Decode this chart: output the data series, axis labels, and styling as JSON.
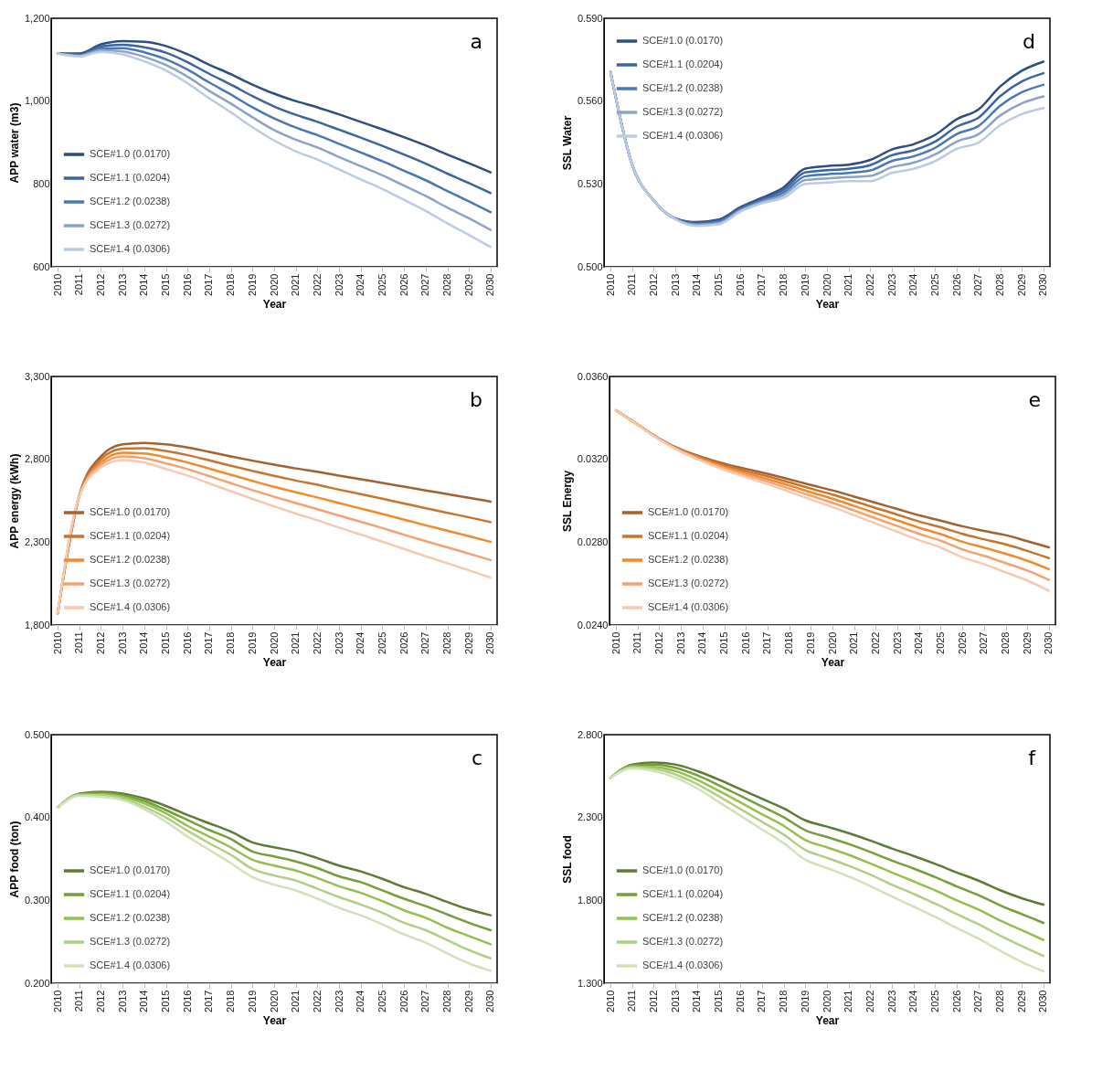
{
  "chart_data": [
    {
      "type": "line",
      "xlabel": "Year",
      "ylabel": "APP water (m3)",
      "annotations": [
        "a"
      ],
      "legend": "bottom left",
      "categories": [
        "2010",
        "2011",
        "2012",
        "2013",
        "2014",
        "2015",
        "2016",
        "2017",
        "2018",
        "2019",
        "2020",
        "2021",
        "2022",
        "2023",
        "2024",
        "2025",
        "2026",
        "2027",
        "2028",
        "2029",
        "2030"
      ],
      "ylim": [
        600,
        1200
      ],
      "yticks": [
        {
          "value": 600,
          "label": "600"
        },
        {
          "value": 800,
          "label": "800"
        },
        {
          "value": 1000,
          "label": "1,000"
        },
        {
          "value": 1200,
          "label": "1,200"
        }
      ],
      "series": [
        {
          "name": "SCE#1.0 (0.0170)",
          "color": "#2f4d7e",
          "values": [
            1115,
            1115,
            1137,
            1145,
            1143,
            1133,
            1113,
            1088,
            1065,
            1040,
            1018,
            1000,
            985,
            968,
            950,
            932,
            913,
            893,
            871,
            850,
            828
          ]
        },
        {
          "name": "SCE#1.1 (0.0204)",
          "color": "#3c64a0",
          "values": [
            1115,
            1113,
            1132,
            1136,
            1130,
            1117,
            1094,
            1066,
            1040,
            1012,
            987,
            967,
            950,
            931,
            912,
            892,
            871,
            849,
            825,
            802,
            778
          ]
        },
        {
          "name": "SCE#1.2 (0.0238)",
          "color": "#4a78b4",
          "values": [
            1115,
            1111,
            1127,
            1128,
            1118,
            1101,
            1076,
            1045,
            1016,
            985,
            958,
            936,
            918,
            897,
            876,
            855,
            832,
            809,
            783,
            758,
            732
          ]
        },
        {
          "name": "SCE#1.3 (0.0272)",
          "color": "#8da2c8",
          "values": [
            1115,
            1109,
            1123,
            1120,
            1107,
            1087,
            1059,
            1025,
            994,
            961,
            930,
            907,
            888,
            865,
            843,
            821,
            796,
            771,
            743,
            717,
            689
          ]
        },
        {
          "name": "SCE#1.4 (0.0306)",
          "color": "#bccbe3",
          "values": [
            1115,
            1108,
            1119,
            1113,
            1096,
            1074,
            1043,
            1007,
            973,
            937,
            905,
            879,
            859,
            835,
            811,
            788,
            762,
            735,
            705,
            677,
            648
          ]
        }
      ]
    },
    {
      "type": "line",
      "xlabel": "Year",
      "ylabel": "SSL Water",
      "annotations": [
        "d"
      ],
      "legend": "top left",
      "categories": [
        "2010",
        "2011",
        "2012",
        "2013",
        "2014",
        "2015",
        "2016",
        "2017",
        "2018",
        "2019",
        "2020",
        "2021",
        "2022",
        "2023",
        "2024",
        "2025",
        "2026",
        "2027",
        "2028",
        "2029",
        "2030"
      ],
      "ylim": [
        0.5,
        0.59
      ],
      "yticks": [
        {
          "value": 0.5,
          "label": "0.500"
        },
        {
          "value": 0.53,
          "label": "0.530"
        },
        {
          "value": 0.56,
          "label": "0.560"
        },
        {
          "value": 0.59,
          "label": "0.590"
        }
      ],
      "series": [
        {
          "name": "SCE#1.0 (0.0170)",
          "color": "#2f4d7e",
          "values": [
            0.5706,
            0.537,
            0.524,
            0.5175,
            0.5162,
            0.5171,
            0.5216,
            0.525,
            0.5288,
            0.5356,
            0.5365,
            0.537,
            0.5387,
            0.5425,
            0.5444,
            0.5478,
            0.5535,
            0.557,
            0.5653,
            0.571,
            0.5743
          ]
        },
        {
          "name": "SCE#1.1 (0.0204)",
          "color": "#3c64a0",
          "values": [
            0.5706,
            0.537,
            0.524,
            0.5174,
            0.5159,
            0.5167,
            0.5212,
            0.5245,
            0.5279,
            0.5342,
            0.535,
            0.5355,
            0.5368,
            0.5404,
            0.5422,
            0.5454,
            0.5508,
            0.554,
            0.5618,
            0.5671,
            0.5701
          ]
        },
        {
          "name": "SCE#1.2 (0.0238)",
          "color": "#4a78b4",
          "values": [
            0.5706,
            0.537,
            0.524,
            0.5174,
            0.5155,
            0.5163,
            0.5208,
            0.524,
            0.5269,
            0.5328,
            0.5335,
            0.534,
            0.5349,
            0.5383,
            0.54,
            0.5431,
            0.5481,
            0.551,
            0.5583,
            0.5632,
            0.5659
          ]
        },
        {
          "name": "SCE#1.3 (0.0272)",
          "color": "#8da2c8",
          "values": [
            0.5706,
            0.537,
            0.524,
            0.5173,
            0.5152,
            0.5158,
            0.5204,
            0.5235,
            0.526,
            0.5314,
            0.532,
            0.5325,
            0.5329,
            0.5361,
            0.5377,
            0.5407,
            0.5454,
            0.548,
            0.5548,
            0.5592,
            0.5617
          ]
        },
        {
          "name": "SCE#1.4 (0.0306)",
          "color": "#bccbe3",
          "values": [
            0.5706,
            0.537,
            0.524,
            0.5172,
            0.5148,
            0.5154,
            0.52,
            0.523,
            0.525,
            0.53,
            0.5305,
            0.531,
            0.531,
            0.534,
            0.5355,
            0.5383,
            0.5427,
            0.545,
            0.5513,
            0.5553,
            0.5575
          ]
        }
      ]
    },
    {
      "type": "line",
      "xlabel": "Year",
      "ylabel": "APP energy (kWh)",
      "annotations": [
        "b"
      ],
      "legend": "bottom left",
      "categories": [
        "2010",
        "2011",
        "2012",
        "2013",
        "2014",
        "2015",
        "2016",
        "2017",
        "2018",
        "2019",
        "2020",
        "2021",
        "2022",
        "2023",
        "2024",
        "2025",
        "2026",
        "2027",
        "2028",
        "2029",
        "2030"
      ],
      "ylim": [
        1800,
        3300
      ],
      "yticks": [
        {
          "value": 1800,
          "label": "1,800"
        },
        {
          "value": 2300,
          "label": "2,300"
        },
        {
          "value": 2800,
          "label": "2,800"
        },
        {
          "value": 3300,
          "label": "3,300"
        }
      ],
      "series": [
        {
          "name": "SCE#1.0 (0.0170)",
          "color": "#a3622f",
          "values": [
            1870,
            2581,
            2818,
            2890,
            2899,
            2890,
            2871,
            2845,
            2818,
            2792,
            2768,
            2745,
            2725,
            2702,
            2680,
            2658,
            2635,
            2612,
            2590,
            2568,
            2545
          ]
        },
        {
          "name": "SCE#1.1 (0.0204)",
          "color": "#c8742e",
          "values": [
            1870,
            2580,
            2800,
            2864,
            2867,
            2850,
            2825,
            2794,
            2761,
            2730,
            2700,
            2672,
            2646,
            2617,
            2590,
            2562,
            2533,
            2505,
            2477,
            2450,
            2421
          ]
        },
        {
          "name": "SCE#1.2 (0.0238)",
          "color": "#f08a2a",
          "values": [
            1870,
            2578,
            2782,
            2840,
            2836,
            2812,
            2781,
            2744,
            2707,
            2670,
            2634,
            2601,
            2570,
            2536,
            2503,
            2470,
            2436,
            2402,
            2369,
            2336,
            2302
          ]
        },
        {
          "name": "SCE#1.3 (0.0272)",
          "color": "#f4a271",
          "values": [
            1870,
            2577,
            2766,
            2817,
            2807,
            2776,
            2741,
            2699,
            2656,
            2614,
            2574,
            2536,
            2499,
            2460,
            2423,
            2385,
            2345,
            2306,
            2269,
            2231,
            2192
          ]
        },
        {
          "name": "SCE#1.4 (0.0306)",
          "color": "#f7c9b0",
          "values": [
            1870,
            2576,
            2751,
            2795,
            2780,
            2742,
            2702,
            2655,
            2608,
            2561,
            2516,
            2473,
            2432,
            2388,
            2346,
            2303,
            2259,
            2215,
            2173,
            2130,
            2086
          ]
        }
      ]
    },
    {
      "type": "line",
      "xlabel": "Year",
      "ylabel": "SSL Energy",
      "annotations": [
        "e"
      ],
      "legend": "bottom left",
      "categories": [
        "2010",
        "2011",
        "2012",
        "2013",
        "2014",
        "2015",
        "2016",
        "2017",
        "2018",
        "2019",
        "2020",
        "2021",
        "2022",
        "2023",
        "2024",
        "2025",
        "2026",
        "2027",
        "2028",
        "2029",
        "2030"
      ],
      "ylim": [
        0.024,
        0.036
      ],
      "yticks": [
        {
          "value": 0.024,
          "label": "0.0240"
        },
        {
          "value": 0.028,
          "label": "0.0280"
        },
        {
          "value": 0.032,
          "label": "0.0320"
        },
        {
          "value": 0.036,
          "label": "0.0360"
        }
      ],
      "series": [
        {
          "name": "SCE#1.0 (0.0170)",
          "color": "#a3622f",
          "values": [
            0.03437,
            0.03368,
            0.033,
            0.03247,
            0.0321,
            0.03179,
            0.03154,
            0.0313,
            0.03104,
            0.03076,
            0.0305,
            0.0302,
            0.0299,
            0.0296,
            0.0293,
            0.02904,
            0.02877,
            0.02854,
            0.02834,
            0.02805,
            0.02775
          ]
        },
        {
          "name": "SCE#1.1 (0.0204)",
          "color": "#c8742e",
          "values": [
            0.03437,
            0.03368,
            0.03299,
            0.03245,
            0.03205,
            0.03172,
            0.03144,
            0.03118,
            0.03089,
            0.03059,
            0.0303,
            0.02998,
            0.02965,
            0.02933,
            0.029,
            0.02872,
            0.0284,
            0.02814,
            0.02789,
            0.02758,
            0.02723
          ]
        },
        {
          "name": "SCE#1.2 (0.0238)",
          "color": "#f08a2a",
          "values": [
            0.03437,
            0.03367,
            0.03298,
            0.03242,
            0.032,
            0.03164,
            0.03134,
            0.03105,
            0.03074,
            0.03041,
            0.0301,
            0.02975,
            0.0294,
            0.02905,
            0.0287,
            0.02839,
            0.02802,
            0.02774,
            0.02744,
            0.0271,
            0.0267
          ]
        },
        {
          "name": "SCE#1.3 (0.0272)",
          "color": "#f4a271",
          "values": [
            0.03437,
            0.03366,
            0.03296,
            0.0324,
            0.03195,
            0.03157,
            0.03124,
            0.03093,
            0.03059,
            0.03024,
            0.0299,
            0.02953,
            0.02915,
            0.02878,
            0.0284,
            0.02807,
            0.02765,
            0.02734,
            0.02699,
            0.02663,
            0.02618
          ]
        },
        {
          "name": "SCE#1.4 (0.0306)",
          "color": "#f7c9b0",
          "values": [
            0.03437,
            0.03366,
            0.03295,
            0.03237,
            0.0319,
            0.03149,
            0.03114,
            0.0308,
            0.03044,
            0.03006,
            0.0297,
            0.0293,
            0.0289,
            0.0285,
            0.0281,
            0.02774,
            0.02727,
            0.02694,
            0.02654,
            0.02615,
            0.02565
          ]
        }
      ]
    },
    {
      "type": "line",
      "xlabel": "Year",
      "ylabel": "APP food (ton)",
      "annotations": [
        "c"
      ],
      "legend": "bottom left",
      "categories": [
        "2010",
        "2011",
        "2012",
        "2013",
        "2014",
        "2015",
        "2016",
        "2017",
        "2018",
        "2019",
        "2020",
        "2021",
        "2022",
        "2023",
        "2024",
        "2025",
        "2026",
        "2027",
        "2028",
        "2029",
        "2030"
      ],
      "ylim": [
        0.2,
        0.5
      ],
      "yticks": [
        {
          "value": 0.2,
          "label": "0.200"
        },
        {
          "value": 0.3,
          "label": "0.300"
        },
        {
          "value": 0.4,
          "label": "0.400"
        },
        {
          "value": 0.5,
          "label": "0.500"
        }
      ],
      "series": [
        {
          "name": "SCE#1.0 (0.0170)",
          "color": "#5e7a36",
          "values": [
            0.412,
            0.429,
            0.431,
            0.429,
            0.423,
            0.414,
            0.403,
            0.393,
            0.383,
            0.37,
            0.364,
            0.359,
            0.351,
            0.342,
            0.335,
            0.326,
            0.316,
            0.308,
            0.298,
            0.289,
            0.282
          ]
        },
        {
          "name": "SCE#1.1 (0.0204)",
          "color": "#74a03a",
          "values": [
            0.412,
            0.428,
            0.43,
            0.427,
            0.42,
            0.409,
            0.397,
            0.385,
            0.374,
            0.359,
            0.353,
            0.347,
            0.339,
            0.329,
            0.322,
            0.312,
            0.302,
            0.293,
            0.283,
            0.273,
            0.264
          ]
        },
        {
          "name": "SCE#1.2 (0.0238)",
          "color": "#94c04e",
          "values": [
            0.412,
            0.428,
            0.428,
            0.425,
            0.417,
            0.405,
            0.39,
            0.377,
            0.364,
            0.349,
            0.342,
            0.336,
            0.327,
            0.317,
            0.309,
            0.299,
            0.288,
            0.279,
            0.267,
            0.257,
            0.247
          ]
        },
        {
          "name": "SCE#1.3 (0.0272)",
          "color": "#b1cf85",
          "values": [
            0.412,
            0.427,
            0.427,
            0.423,
            0.413,
            0.4,
            0.384,
            0.369,
            0.355,
            0.338,
            0.33,
            0.324,
            0.314,
            0.304,
            0.295,
            0.285,
            0.273,
            0.264,
            0.252,
            0.24,
            0.23
          ]
        },
        {
          "name": "SCE#1.4 (0.0306)",
          "color": "#d2e2b8",
          "values": [
            0.412,
            0.426,
            0.425,
            0.421,
            0.41,
            0.395,
            0.377,
            0.361,
            0.345,
            0.328,
            0.319,
            0.312,
            0.302,
            0.291,
            0.282,
            0.271,
            0.259,
            0.249,
            0.236,
            0.224,
            0.215
          ]
        }
      ]
    },
    {
      "type": "line",
      "xlabel": "Year",
      "ylabel": "SSL food",
      "annotations": [
        "f"
      ],
      "legend": "bottom left",
      "categories": [
        "2010",
        "2011",
        "2012",
        "2013",
        "2014",
        "2015",
        "2016",
        "2017",
        "2018",
        "2019",
        "2020",
        "2021",
        "2022",
        "2023",
        "2024",
        "2025",
        "2026",
        "2027",
        "2028",
        "2029",
        "2030"
      ],
      "ylim": [
        1.3,
        2.8
      ],
      "yticks": [
        {
          "value": 1.3,
          "label": "1.300"
        },
        {
          "value": 1.8,
          "label": "1.800"
        },
        {
          "value": 2.3,
          "label": "2.300"
        },
        {
          "value": 2.8,
          "label": "2.800"
        }
      ],
      "series": [
        {
          "name": "SCE#1.0 (0.0170)",
          "color": "#5e7a36",
          "values": [
            2.539,
            2.62,
            2.632,
            2.62,
            2.581,
            2.529,
            2.471,
            2.413,
            2.355,
            2.283,
            2.245,
            2.206,
            2.161,
            2.113,
            2.068,
            2.02,
            1.968,
            1.919,
            1.861,
            1.813,
            1.774
          ]
        },
        {
          "name": "SCE#1.1 (0.0204)",
          "color": "#74a03a",
          "values": [
            2.539,
            2.614,
            2.619,
            2.6,
            2.555,
            2.495,
            2.431,
            2.367,
            2.302,
            2.223,
            2.182,
            2.14,
            2.092,
            2.04,
            1.992,
            1.94,
            1.884,
            1.831,
            1.77,
            1.717,
            1.664
          ]
        },
        {
          "name": "SCE#1.2 (0.0238)",
          "color": "#94c04e",
          "values": [
            2.539,
            2.608,
            2.606,
            2.58,
            2.528,
            2.461,
            2.391,
            2.32,
            2.25,
            2.164,
            2.12,
            2.075,
            2.023,
            1.968,
            1.915,
            1.86,
            1.8,
            1.744,
            1.678,
            1.62,
            1.561
          ]
        },
        {
          "name": "SCE#1.3 (0.0272)",
          "color": "#b1cf85",
          "values": [
            2.539,
            2.603,
            2.594,
            2.56,
            2.502,
            2.428,
            2.351,
            2.274,
            2.197,
            2.104,
            2.057,
            2.009,
            1.955,
            1.895,
            1.839,
            1.78,
            1.717,
            1.656,
            1.587,
            1.524,
            1.465
          ]
        },
        {
          "name": "SCE#1.4 (0.0306)",
          "color": "#d2e2b8",
          "values": [
            2.539,
            2.597,
            2.581,
            2.54,
            2.476,
            2.394,
            2.311,
            2.228,
            2.145,
            2.045,
            1.995,
            1.944,
            1.886,
            1.823,
            1.763,
            1.7,
            1.633,
            1.569,
            1.496,
            1.428,
            1.372
          ]
        }
      ]
    }
  ]
}
